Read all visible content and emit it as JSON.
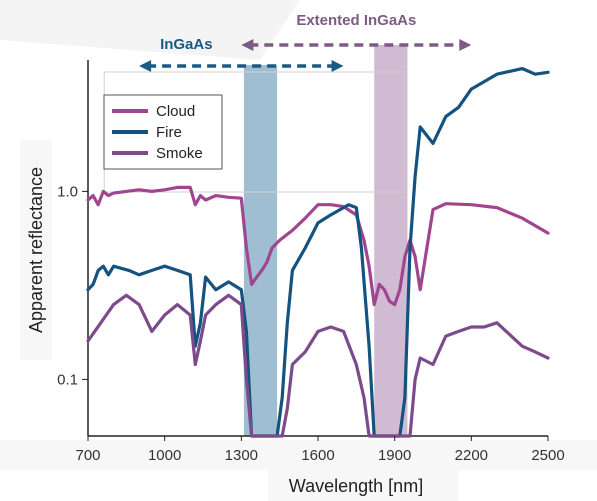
{
  "chart_data": {
    "type": "line",
    "xlabel": "Wavelength [nm]",
    "ylabel": "Apparent reflectance",
    "x_ticks": [
      700,
      1000,
      1300,
      1600,
      1900,
      2200,
      2500
    ],
    "x_tick_labels": [
      "700",
      "1000",
      "1300",
      "1600",
      "1900",
      "2200",
      "2500"
    ],
    "y_scale": "log",
    "y_ticks": [
      0.1,
      1.0
    ],
    "y_tick_labels": [
      "0.1",
      "1.0"
    ],
    "xlim": [
      700,
      2500
    ],
    "ylim": [
      0.05,
      5
    ],
    "grid": false,
    "legend_position": "top-left",
    "bands": [
      {
        "label": "InGaAs",
        "range": [
          900,
          1700
        ],
        "highlight": [
          1310,
          1440
        ],
        "color": "#1a5a86",
        "fill": "#8fb3c9"
      },
      {
        "label": "Extented InGaAs",
        "range": [
          1300,
          2200
        ],
        "highlight": [
          1820,
          1950
        ],
        "color": "#7e5a86",
        "fill": "#c8afcb"
      }
    ],
    "series": [
      {
        "name": "Cloud",
        "color": "#a04690",
        "x": [
          700,
          720,
          740,
          760,
          780,
          800,
          850,
          900,
          950,
          1000,
          1050,
          1100,
          1120,
          1140,
          1160,
          1200,
          1250,
          1300,
          1320,
          1340,
          1360,
          1380,
          1400,
          1420,
          1450,
          1500,
          1550,
          1600,
          1650,
          1700,
          1750,
          1780,
          1800,
          1820,
          1840,
          1860,
          1880,
          1900,
          1920,
          1940,
          1960,
          1980,
          2000,
          2050,
          2100,
          2200,
          2300,
          2400,
          2500
        ],
        "y": [
          0.9,
          0.95,
          0.85,
          1.0,
          0.95,
          0.98,
          1.0,
          1.02,
          1.0,
          1.02,
          1.05,
          1.05,
          0.85,
          0.95,
          0.9,
          0.95,
          0.93,
          0.92,
          0.5,
          0.32,
          0.35,
          0.38,
          0.42,
          0.5,
          0.55,
          0.62,
          0.72,
          0.85,
          0.85,
          0.83,
          0.75,
          0.55,
          0.4,
          0.25,
          0.32,
          0.3,
          0.26,
          0.25,
          0.3,
          0.45,
          0.55,
          0.45,
          0.3,
          0.8,
          0.86,
          0.85,
          0.82,
          0.72,
          0.6
        ]
      },
      {
        "name": "Fire",
        "color": "#14527f",
        "x": [
          700,
          720,
          740,
          760,
          780,
          800,
          830,
          860,
          900,
          950,
          1000,
          1050,
          1100,
          1120,
          1140,
          1160,
          1200,
          1250,
          1300,
          1320,
          1340,
          1360,
          1380,
          1400,
          1420,
          1440,
          1460,
          1480,
          1500,
          1550,
          1600,
          1650,
          1700,
          1720,
          1750,
          1770,
          1800,
          1820,
          1840,
          1860,
          1880,
          1900,
          1920,
          1940,
          1960,
          1980,
          2000,
          2050,
          2100,
          2150,
          2200,
          2300,
          2400,
          2450,
          2500
        ],
        "y": [
          0.3,
          0.32,
          0.38,
          0.4,
          0.36,
          0.4,
          0.39,
          0.38,
          0.36,
          0.38,
          0.4,
          0.38,
          0.36,
          0.15,
          0.2,
          0.35,
          0.3,
          0.33,
          0.3,
          0.18,
          0.05,
          0.05,
          0.05,
          0.05,
          0.05,
          0.05,
          0.08,
          0.2,
          0.38,
          0.5,
          0.68,
          0.75,
          0.82,
          0.85,
          0.82,
          0.5,
          0.15,
          0.05,
          0.05,
          0.05,
          0.05,
          0.05,
          0.05,
          0.08,
          0.5,
          1.2,
          2.2,
          1.8,
          2.5,
          2.8,
          3.5,
          4.2,
          4.5,
          4.2,
          4.3
        ]
      },
      {
        "name": "Smoke",
        "color": "#7b4b8c",
        "x": [
          700,
          750,
          800,
          850,
          900,
          950,
          1000,
          1050,
          1100,
          1120,
          1140,
          1160,
          1200,
          1250,
          1300,
          1320,
          1340,
          1360,
          1380,
          1400,
          1420,
          1440,
          1460,
          1480,
          1500,
          1550,
          1600,
          1650,
          1700,
          1750,
          1780,
          1800,
          1820,
          1840,
          1860,
          1880,
          1900,
          1920,
          1940,
          1960,
          1980,
          2000,
          2050,
          2100,
          2150,
          2200,
          2250,
          2300,
          2400,
          2450,
          2500
        ],
        "y": [
          0.16,
          0.2,
          0.25,
          0.28,
          0.25,
          0.18,
          0.22,
          0.25,
          0.22,
          0.12,
          0.16,
          0.22,
          0.25,
          0.28,
          0.25,
          0.1,
          0.05,
          0.05,
          0.05,
          0.05,
          0.05,
          0.05,
          0.05,
          0.07,
          0.12,
          0.14,
          0.18,
          0.19,
          0.18,
          0.12,
          0.08,
          0.05,
          0.05,
          0.05,
          0.05,
          0.05,
          0.05,
          0.05,
          0.05,
          0.05,
          0.1,
          0.13,
          0.12,
          0.17,
          0.18,
          0.19,
          0.19,
          0.2,
          0.15,
          0.14,
          0.13
        ]
      }
    ]
  }
}
